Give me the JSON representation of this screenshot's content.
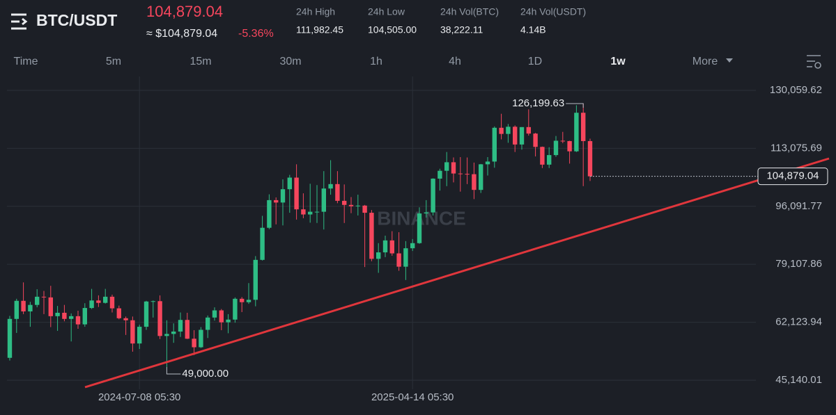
{
  "header": {
    "symbol": "BTC/USDT",
    "price": "104,879.04",
    "approx_price": "≈ $104,879.04",
    "change": "-5.36%",
    "stats": [
      {
        "label": "24h High",
        "value": "111,982.45"
      },
      {
        "label": "24h Low",
        "value": "104,505.00"
      },
      {
        "label": "24h Vol(BTC)",
        "value": "38,222.11"
      },
      {
        "label": "24h Vol(USDT)",
        "value": "4.14B"
      }
    ]
  },
  "tabs": [
    "Time",
    "5m",
    "15m",
    "30m",
    "1h",
    "4h",
    "1D",
    "1w",
    "More"
  ],
  "chart_data": {
    "type": "candlestick",
    "categories": [
      null,
      null,
      null,
      null,
      null,
      null,
      null,
      null,
      null,
      null,
      null,
      null,
      null,
      null,
      null,
      null,
      null,
      null,
      null,
      "2024-07-08 05:30",
      null,
      null,
      null,
      null,
      null,
      null,
      null,
      null,
      null,
      null,
      null,
      null,
      null,
      null,
      null,
      null,
      null,
      null,
      null,
      null,
      null,
      null,
      null,
      null,
      null,
      null,
      null,
      null,
      null,
      null,
      null,
      null,
      null,
      null,
      null,
      null,
      null,
      null,
      null,
      "2025-04-14 05:30",
      null,
      null,
      null,
      null,
      null,
      null,
      null,
      null,
      null,
      null,
      null,
      null,
      null,
      null,
      null,
      null,
      null,
      null,
      null,
      null,
      null,
      null,
      null,
      null,
      null,
      null
    ],
    "open": [
      51700,
      63100,
      68400,
      65300,
      67200,
      69600,
      69400,
      63900,
      64900,
      63100,
      63900,
      61500,
      66300,
      68500,
      67800,
      69600,
      66200,
      63300,
      62700,
      55900,
      60800,
      68200,
      68300,
      58100,
      58700,
      59400,
      62800,
      57300,
      54800,
      59900,
      63500,
      65600,
      62100,
      62900,
      69000,
      68000,
      68700,
      80400,
      89800,
      97900,
      97200,
      101100,
      104500,
      95200,
      93700,
      94500,
      94500,
      101300,
      102600,
      97700,
      96500,
      96100,
      96300,
      94200,
      80700,
      82600,
      86100,
      82300,
      78400,
      83800,
      85300,
      94000,
      94300,
      104200,
      106500,
      109000,
      105700,
      105600,
      105500,
      100900,
      108400,
      109200,
      119100,
      117300,
      119400,
      114200,
      119300,
      117400,
      113500,
      108300,
      111100,
      115300,
      115200,
      112200,
      123500,
      115200
    ],
    "high": [
      64000,
      69000,
      73800,
      68100,
      71800,
      71300,
      72800,
      66900,
      67200,
      64700,
      65500,
      67700,
      71900,
      70000,
      71900,
      70200,
      67000,
      63800,
      63800,
      61400,
      68400,
      68500,
      70000,
      62700,
      61800,
      65000,
      64900,
      59800,
      60700,
      64100,
      66500,
      66000,
      64500,
      69400,
      69500,
      73600,
      81500,
      93300,
      99600,
      98700,
      104000,
      105300,
      108400,
      99900,
      102700,
      102300,
      106400,
      109600,
      106400,
      102500,
      98800,
      99500,
      96500,
      95000,
      85300,
      87500,
      88800,
      88500,
      85900,
      86500,
      95800,
      97900,
      104300,
      107100,
      112000,
      110400,
      110500,
      110400,
      108900,
      108500,
      110500,
      119500,
      123200,
      120200,
      119800,
      119300,
      124500,
      117600,
      113600,
      113400,
      116700,
      117900,
      115300,
      125700,
      126199.63,
      115900
    ],
    "low": [
      50900,
      59000,
      64500,
      60800,
      66500,
      64500,
      60700,
      59600,
      62400,
      56500,
      60200,
      60800,
      66000,
      66600,
      67600,
      65000,
      63000,
      58400,
      53500,
      54300,
      59900,
      63500,
      57200,
      49000,
      56100,
      57800,
      57200,
      52500,
      54600,
      57500,
      62600,
      59800,
      58900,
      62000,
      65100,
      67500,
      66800,
      80200,
      89400,
      90800,
      90500,
      94200,
      92200,
      92600,
      91300,
      91200,
      89300,
      99500,
      97000,
      91200,
      94100,
      93400,
      78300,
      80000,
      76600,
      81200,
      81600,
      77200,
      74500,
      83000,
      85100,
      92800,
      93400,
      100700,
      102000,
      103100,
      100400,
      102600,
      98200,
      100000,
      105100,
      107400,
      115700,
      114700,
      112000,
      112700,
      116800,
      110700,
      107300,
      107300,
      110600,
      114600,
      108600,
      112000,
      102000,
      103500
    ],
    "close": [
      63100,
      68400,
      65300,
      67200,
      69600,
      69400,
      63900,
      64900,
      63100,
      63900,
      61500,
      66300,
      68500,
      67800,
      69600,
      66200,
      63300,
      62700,
      55900,
      60800,
      68200,
      68300,
      58100,
      58700,
      59400,
      62800,
      57300,
      54800,
      59900,
      63500,
      65600,
      62100,
      62900,
      69000,
      68000,
      68700,
      80400,
      89800,
      97900,
      97200,
      101100,
      104500,
      95200,
      93700,
      94500,
      94500,
      101300,
      102600,
      97700,
      96500,
      96100,
      96300,
      94200,
      80700,
      82600,
      86100,
      82300,
      78400,
      83800,
      85300,
      94000,
      94300,
      104200,
      106500,
      109000,
      105700,
      105600,
      105500,
      100900,
      108400,
      109200,
      119100,
      117300,
      119400,
      114200,
      119300,
      117400,
      113500,
      108300,
      111100,
      115300,
      115200,
      112200,
      123500,
      115200,
      104879.04
    ],
    "up_color": "#2ebd85",
    "down_color": "#f6465d",
    "ylim": [
      42485,
      134132
    ],
    "yticks": [
      {
        "value": 45140.01,
        "label": "45,140.01"
      },
      {
        "value": 62123.94,
        "label": "62,123.94"
      },
      {
        "value": 79107.86,
        "label": "79,107.86"
      },
      {
        "value": 96091.77,
        "label": "96,091.77"
      },
      {
        "value": 113075.69,
        "label": "113,075.69"
      },
      {
        "value": 130059.62,
        "label": "130,059.62"
      }
    ],
    "grid": true,
    "high_marker": {
      "value": 126199.63,
      "label": "126,199.63"
    },
    "low_marker": {
      "value": 49000,
      "label": "49,000.00"
    },
    "last_price": {
      "value": 104879.04,
      "label": "104,879.04"
    },
    "watermark": "BINANCE"
  }
}
